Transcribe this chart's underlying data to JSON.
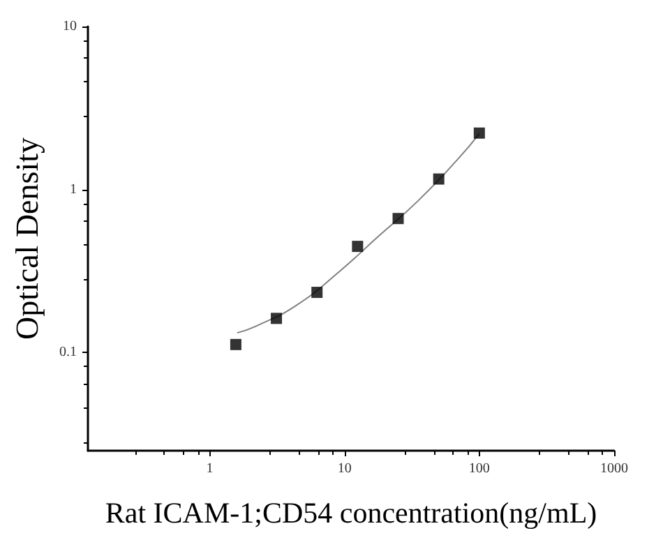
{
  "chart_data": {
    "type": "scatter",
    "xlabel": "Rat ICAM-1;CD54 concentration(ng/mL)",
    "ylabel": "Optical Density",
    "log": "xy",
    "xlim": [
      0.125,
      1000
    ],
    "ylim": [
      0.025,
      10
    ],
    "xticks": [
      1,
      10,
      100,
      1000
    ],
    "yticks": [
      0.1,
      1,
      10
    ],
    "series": [
      {
        "marker": "square",
        "color": "#000000",
        "x": [
          1.5625,
          3.125,
          6.25,
          12.5,
          25,
          50,
          100
        ],
        "values": [
          0.112,
          0.162,
          0.234,
          0.448,
          0.664,
          1.16,
          2.22
        ]
      },
      {
        "type": "line",
        "marker": "none",
        "line_style": "solid",
        "color": "#808080",
        "x": [
          1.6,
          2.2,
          4.4,
          9,
          18,
          35,
          70,
          100
        ],
        "values": [
          0.132,
          0.145,
          0.195,
          0.31,
          0.52,
          0.85,
          1.55,
          2.2
        ]
      }
    ]
  }
}
